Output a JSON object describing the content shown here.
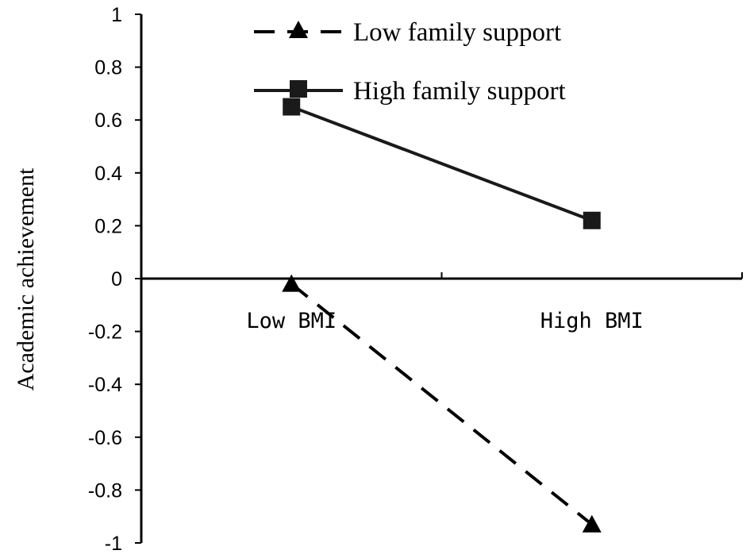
{
  "chart_data": {
    "type": "line",
    "title": "",
    "xlabel": "",
    "ylabel": "Academic achievement",
    "categories": [
      "Low BMI",
      "High BMI"
    ],
    "ylim": [
      -1,
      1
    ],
    "yticks": [
      "1",
      "0.8",
      "0.6",
      "0.4",
      "0.2",
      "0",
      "-0.2",
      "-0.4",
      "-0.6",
      "-0.8",
      "-1"
    ],
    "grid": false,
    "legend_position": "top",
    "series": [
      {
        "name": "Low family support",
        "values": [
          -0.02,
          -0.93
        ],
        "marker": "triangle",
        "line_style": "dashed",
        "color": "#000000"
      },
      {
        "name": "High family support",
        "values": [
          0.65,
          0.22
        ],
        "marker": "square",
        "line_style": "solid",
        "color": "#1a1a1a"
      }
    ]
  }
}
